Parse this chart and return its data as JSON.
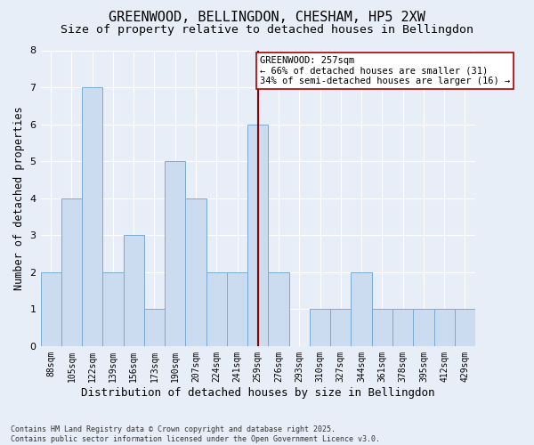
{
  "title": "GREENWOOD, BELLINGDON, CHESHAM, HP5 2XW",
  "subtitle": "Size of property relative to detached houses in Bellingdon",
  "xlabel": "Distribution of detached houses by size in Bellingdon",
  "ylabel": "Number of detached properties",
  "footer": "Contains HM Land Registry data © Crown copyright and database right 2025.\nContains public sector information licensed under the Open Government Licence v3.0.",
  "categories": [
    "88sqm",
    "105sqm",
    "122sqm",
    "139sqm",
    "156sqm",
    "173sqm",
    "190sqm",
    "207sqm",
    "224sqm",
    "241sqm",
    "259sqm",
    "276sqm",
    "293sqm",
    "310sqm",
    "327sqm",
    "344sqm",
    "361sqm",
    "378sqm",
    "395sqm",
    "412sqm",
    "429sqm"
  ],
  "values": [
    2,
    4,
    7,
    2,
    3,
    1,
    5,
    4,
    2,
    2,
    6,
    2,
    0,
    1,
    1,
    2,
    1,
    1,
    1,
    1,
    1
  ],
  "bar_color": "#ccdcf0",
  "bar_edge_color": "#7aaad4",
  "vline_x_index": 10,
  "vline_color": "#8b0000",
  "annotation_text": "GREENWOOD: 257sqm\n← 66% of detached houses are smaller (31)\n34% of semi-detached houses are larger (16) →",
  "annotation_box_color": "#ffffff",
  "annotation_box_edge": "#aa0000",
  "ylim": [
    0,
    8
  ],
  "yticks": [
    0,
    1,
    2,
    3,
    4,
    5,
    6,
    7,
    8
  ],
  "background_color": "#e8eef8",
  "grid_color": "#ffffff",
  "title_fontsize": 11,
  "subtitle_fontsize": 9.5,
  "xlabel_fontsize": 9,
  "ylabel_fontsize": 8.5,
  "tick_fontsize": 7,
  "ytick_fontsize": 8,
  "footer_fontsize": 6,
  "annotation_fontsize": 7.5
}
